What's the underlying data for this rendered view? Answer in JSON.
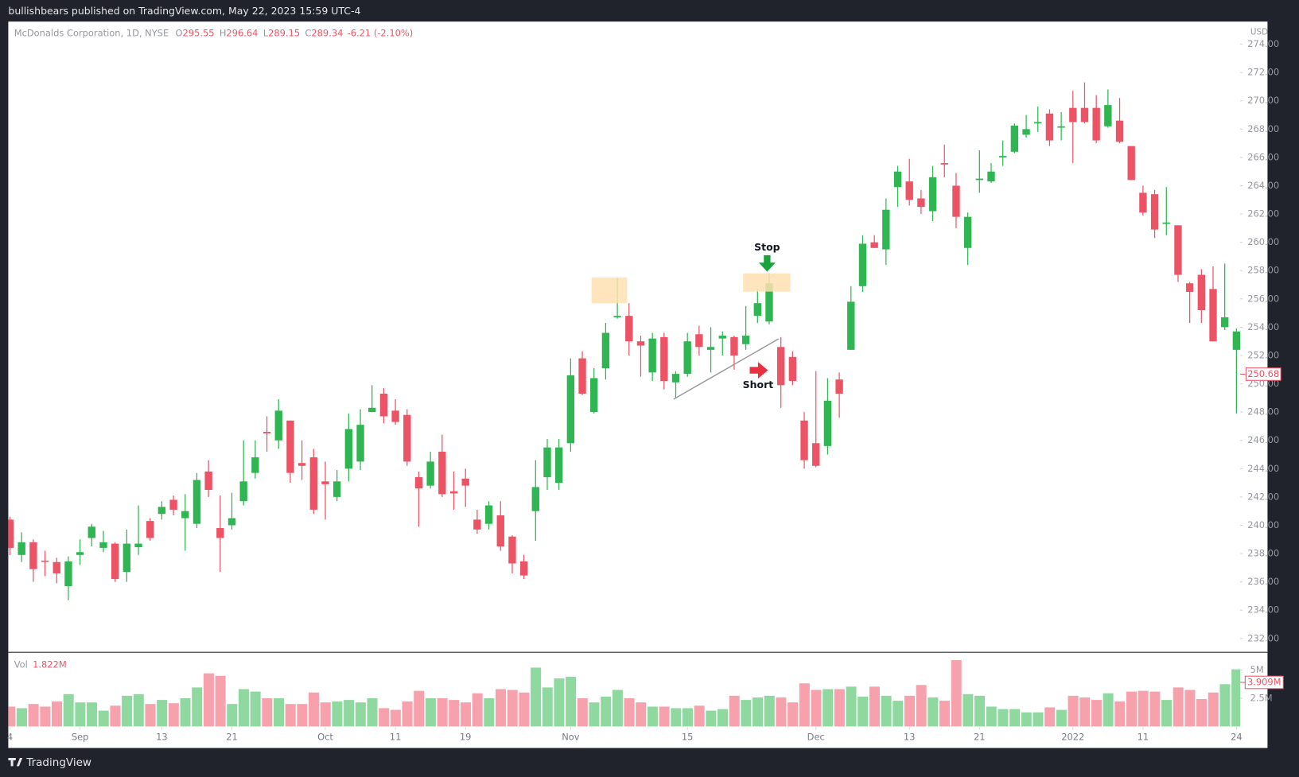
{
  "header": {
    "publisher": "bullishbears published on TradingView.com, May 22, 2023 15:59 UTC-4"
  },
  "footer": {
    "brand": "TradingView"
  },
  "chart_data": {
    "type": "candlestick",
    "title": "McDonalds Corporation, 1D, NYSE",
    "ohlc_legend": [
      {
        "label": "O",
        "value": 295.55
      },
      {
        "label": "H",
        "value": 296.64
      },
      {
        "label": "L",
        "value": 289.15
      },
      {
        "label": "C",
        "value": 289.34
      }
    ],
    "change": "-6.21 (-2.10%)",
    "currency": "USD",
    "up_color": "#2fb653",
    "down_color": "#ec5466",
    "categories": [
      "4",
      null,
      null,
      null,
      null,
      null,
      "Sep",
      null,
      null,
      null,
      null,
      null,
      null,
      "13",
      null,
      null,
      null,
      null,
      null,
      "21",
      null,
      null,
      null,
      null,
      null,
      null,
      null,
      "Oct",
      null,
      null,
      null,
      null,
      null,
      "11",
      null,
      null,
      null,
      null,
      null,
      "19",
      null,
      null,
      null,
      null,
      null,
      null,
      null,
      null,
      "Nov",
      null,
      null,
      null,
      null,
      null,
      null,
      null,
      null,
      null,
      "15",
      null,
      null,
      null,
      null,
      null,
      null,
      null,
      null,
      null,
      null,
      "Dec",
      null,
      null,
      null,
      null,
      null,
      null,
      null,
      "13",
      null,
      null,
      null,
      null,
      null,
      "21",
      null,
      null,
      null,
      null,
      null,
      null,
      null,
      "2022",
      null,
      null,
      null,
      null,
      null,
      "11",
      null,
      null,
      null,
      null,
      null,
      null,
      null,
      "24"
    ],
    "open": [
      240.4,
      237.9,
      238.8,
      237.5,
      237.4,
      235.7,
      237.9,
      239.1,
      238.4,
      238.7,
      236.7,
      238.45,
      240.3,
      240.8,
      241.8,
      240.5,
      240.1,
      243.8,
      239.8,
      240.0,
      241.7,
      243.7,
      246.6,
      246.0,
      247.4,
      244.4,
      244.8,
      243.1,
      242.0,
      244.0,
      244.5,
      248.0,
      249.3,
      248.1,
      247.8,
      243.4,
      242.8,
      245.2,
      242.4,
      243.3,
      240.4,
      240.1,
      240.7,
      239.2,
      237.45,
      241.0,
      243.4,
      243.0,
      245.8,
      251.8,
      248.0,
      251.1,
      254.7,
      254.8,
      253.0,
      250.8,
      253.3,
      250.1,
      250.7,
      253.5,
      252.4,
      253.2,
      253.3,
      252.8,
      254.8,
      254.4,
      252.6,
      251.9,
      247.4,
      245.8,
      245.6,
      250.3,
      252.4,
      256.9,
      260.0,
      259.5,
      263.9,
      264.3,
      263.1,
      262.2,
      265.6,
      264.0,
      259.6,
      264.4,
      264.3,
      266.0,
      266.4,
      267.6,
      268.4,
      269.1,
      268.1,
      269.5,
      269.5,
      269.5,
      268.2,
      268.6,
      266.8,
      263.5,
      263.4,
      261.3,
      261.2,
      257.1,
      257.7,
      256.7,
      254.0,
      252.4
    ],
    "high": [
      240.6,
      239.5,
      239.0,
      238.2,
      237.7,
      237.8,
      239.0,
      240.1,
      239.6,
      238.8,
      239.7,
      241.4,
      240.5,
      241.7,
      242.1,
      242.2,
      243.7,
      244.6,
      242.1,
      242.3,
      246.0,
      246.0,
      247.7,
      248.9,
      247.4,
      246.0,
      245.4,
      244.5,
      243.9,
      247.9,
      248.2,
      249.9,
      249.7,
      248.9,
      248.2,
      243.8,
      245.2,
      246.4,
      243.8,
      244.0,
      241.1,
      241.7,
      241.7,
      239.3,
      237.9,
      244.6,
      246.1,
      246.1,
      251.8,
      252.3,
      251.1,
      254.3,
      257.5,
      255.7,
      253.4,
      253.6,
      253.6,
      250.9,
      253.6,
      254.1,
      254.0,
      253.7,
      253.4,
      255.5,
      256.7,
      257.8,
      253.3,
      252.3,
      248.0,
      250.9,
      250.4,
      250.8,
      256.9,
      260.5,
      260.5,
      263.1,
      265.4,
      265.9,
      263.7,
      265.4,
      266.9,
      264.9,
      262.1,
      266.5,
      265.6,
      267.2,
      268.4,
      269.0,
      269.6,
      269.4,
      269.2,
      270.7,
      271.3,
      270.4,
      270.8,
      270.2,
      266.8,
      264.0,
      263.7,
      263.9,
      261.2,
      257.2,
      258.1,
      258.3,
      258.5,
      253.9
    ],
    "low": [
      237.9,
      237.4,
      236.0,
      236.4,
      235.9,
      234.7,
      237.2,
      238.5,
      238.1,
      236.0,
      236.0,
      237.9,
      238.9,
      240.4,
      240.7,
      238.2,
      239.8,
      242.0,
      236.7,
      239.7,
      241.4,
      243.3,
      245.2,
      245.4,
      243.0,
      243.2,
      240.8,
      240.4,
      241.7,
      243.1,
      243.9,
      248.0,
      247.2,
      247.1,
      244.2,
      239.9,
      242.6,
      242.0,
      241.1,
      241.3,
      239.4,
      239.7,
      238.2,
      236.6,
      236.2,
      238.9,
      242.5,
      242.5,
      245.2,
      249.2,
      247.9,
      250.3,
      254.6,
      252.0,
      250.5,
      250.2,
      249.6,
      249.0,
      250.5,
      252.0,
      250.8,
      252.0,
      251.0,
      252.4,
      254.3,
      254.2,
      248.3,
      249.9,
      244.0,
      244.1,
      245.0,
      247.6,
      252.4,
      256.5,
      259.6,
      258.4,
      262.5,
      262.6,
      262.0,
      261.5,
      264.6,
      261.0,
      258.4,
      263.5,
      264.2,
      265.4,
      266.3,
      267.4,
      267.8,
      266.8,
      267.2,
      265.6,
      268.4,
      267.0,
      268.1,
      267.0,
      264.4,
      261.9,
      260.3,
      260.5,
      257.2,
      254.3,
      254.3,
      253.0,
      253.8,
      247.9
    ],
    "close": [
      238.4,
      238.8,
      236.9,
      237.45,
      236.6,
      237.45,
      238.1,
      239.9,
      238.8,
      236.2,
      238.7,
      238.7,
      239.1,
      241.3,
      241.1,
      241.0,
      243.2,
      242.5,
      239.1,
      240.5,
      243.1,
      244.8,
      246.5,
      248.1,
      243.7,
      244.2,
      241.1,
      242.9,
      243.1,
      246.8,
      247.1,
      248.3,
      247.7,
      247.3,
      244.5,
      242.6,
      244.5,
      242.2,
      242.25,
      242.8,
      239.7,
      241.4,
      238.5,
      237.3,
      236.45,
      242.7,
      245.5,
      245.5,
      250.6,
      249.3,
      250.4,
      253.6,
      254.8,
      253.0,
      252.7,
      253.2,
      250.2,
      250.7,
      253.0,
      252.6,
      252.6,
      253.4,
      252.0,
      253.4,
      255.7,
      257.1,
      249.9,
      250.2,
      244.6,
      244.2,
      248.8,
      249.3,
      255.8,
      259.9,
      259.6,
      262.3,
      265.0,
      263.0,
      262.5,
      264.6,
      265.5,
      261.8,
      261.8,
      264.5,
      265.0,
      266.1,
      268.25,
      268.0,
      268.5,
      267.2,
      268.2,
      268.5,
      268.5,
      267.2,
      269.7,
      267.1,
      264.4,
      262.1,
      260.9,
      261.4,
      257.7,
      256.5,
      255.2,
      253.0,
      254.7,
      253.7
    ],
    "ylim": [
      231.05,
      275.6
    ],
    "yticks": [
      {
        "value": 232,
        "label": "232.00"
      },
      {
        "value": 234,
        "label": "234.00"
      },
      {
        "value": 236,
        "label": "236.00"
      },
      {
        "value": 238,
        "label": "238.00"
      },
      {
        "value": 240,
        "label": "240.00"
      },
      {
        "value": 242,
        "label": "242.00"
      },
      {
        "value": 244,
        "label": "244.00"
      },
      {
        "value": 246,
        "label": "246.00"
      },
      {
        "value": 248,
        "label": "248.00"
      },
      {
        "value": 250,
        "label": "250.00"
      },
      {
        "value": 252,
        "label": "252.00"
      },
      {
        "value": 254,
        "label": "254.00"
      },
      {
        "value": 256,
        "label": "256.00"
      },
      {
        "value": 258,
        "label": "258.00"
      },
      {
        "value": 260,
        "label": "260.00"
      },
      {
        "value": 262,
        "label": "262.00"
      },
      {
        "value": 264,
        "label": "264.00"
      },
      {
        "value": 266,
        "label": "266.00"
      },
      {
        "value": 268,
        "label": "268.00"
      },
      {
        "value": 270,
        "label": "270.00"
      },
      {
        "value": 272,
        "label": "272.00"
      },
      {
        "value": 274,
        "label": "274.00"
      }
    ],
    "grid": false,
    "last_price": 250.68,
    "annotations": {
      "stop": "Stop",
      "short": "Short"
    },
    "volume": {
      "name": "Vol",
      "legend_value": "1.822M",
      "up_color": "#8fd9a1",
      "down_color": "#f6a1ab",
      "values": [
        1760000,
        1620000,
        1990000,
        1760000,
        2210000,
        2870000,
        2130000,
        2130000,
        1400000,
        1840000,
        2720000,
        2870000,
        1990000,
        2350000,
        2060000,
        2500000,
        3460000,
        4710000,
        4490000,
        1990000,
        3310000,
        3090000,
        2500000,
        2500000,
        1990000,
        1990000,
        3010000,
        2130000,
        2210000,
        2350000,
        2130000,
        2500000,
        1620000,
        1470000,
        2210000,
        3160000,
        2500000,
        2500000,
        2350000,
        2130000,
        2940000,
        2500000,
        3310000,
        3240000,
        3010000,
        5220000,
        3460000,
        4260000,
        4410000,
        2500000,
        2130000,
        2650000,
        3240000,
        2500000,
        2130000,
        1760000,
        1760000,
        1620000,
        1620000,
        1840000,
        1400000,
        1540000,
        2720000,
        2350000,
        2570000,
        2720000,
        2570000,
        2130000,
        3820000,
        3240000,
        3310000,
        3310000,
        3530000,
        2650000,
        3530000,
        2720000,
        2280000,
        2720000,
        3680000,
        2570000,
        2280000,
        5880000,
        2870000,
        2720000,
        1760000,
        1540000,
        1540000,
        1250000,
        1250000,
        1690000,
        1470000,
        2720000,
        2570000,
        2350000,
        2940000,
        2210000,
        3090000,
        3160000,
        3090000,
        2350000,
        3460000,
        3240000,
        2430000,
        3010000,
        3750000,
        5070000
      ],
      "ylim": [
        0,
        6540000
      ],
      "yticks": [
        {
          "value": 2500000,
          "label": "2.5M"
        },
        {
          "value": 5000000,
          "label": "5M"
        }
      ],
      "last": {
        "value": 3909000,
        "label": "3.909M"
      }
    }
  }
}
